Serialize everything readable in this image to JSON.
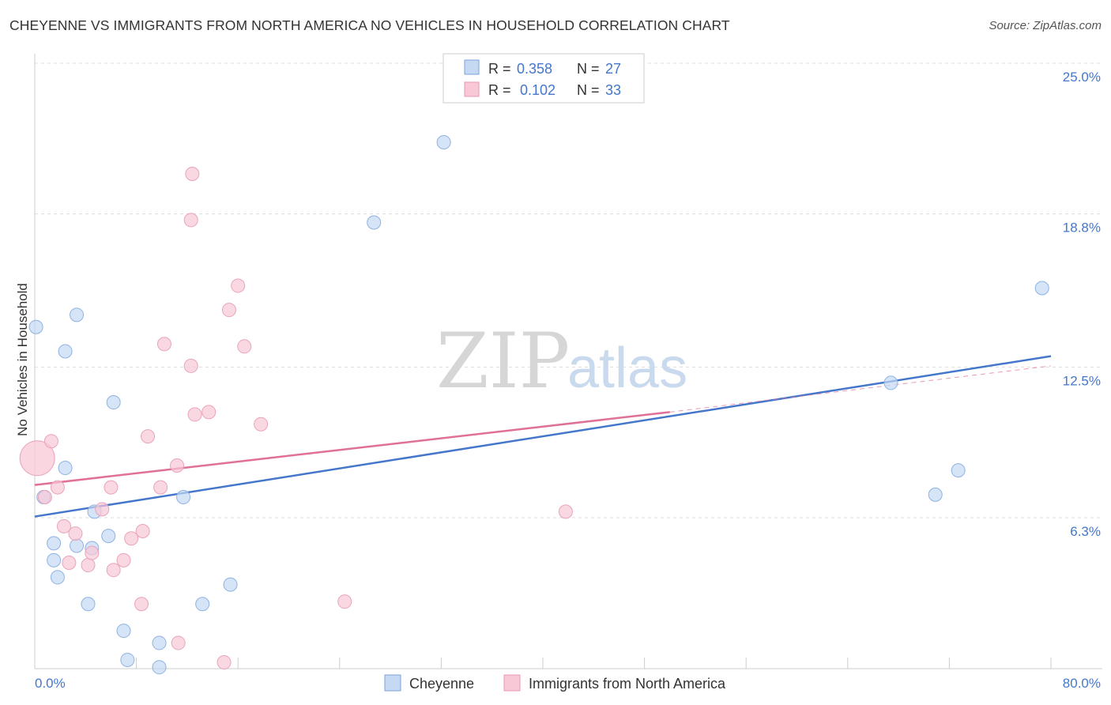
{
  "title": "CHEYENNE VS IMMIGRANTS FROM NORTH AMERICA NO VEHICLES IN HOUSEHOLD CORRELATION CHART",
  "source": "Source: ZipAtlas.com",
  "watermark": {
    "zip": "ZIP",
    "atlas": "atlas"
  },
  "colors": {
    "blue": "#4477cc",
    "pink": "#e07098",
    "blue_fill": "#c5d9f3",
    "pink_fill": "#f8c8d6",
    "grid": "#dddddd"
  },
  "chart_data": {
    "type": "scatter",
    "title": "CHEYENNE VS IMMIGRANTS FROM NORTH AMERICA NO VEHICLES IN HOUSEHOLD CORRELATION CHART",
    "xlabel": "",
    "ylabel": "No Vehicles in Household",
    "xlim": [
      0,
      80
    ],
    "ylim": [
      0,
      26
    ],
    "x_tick_labels": [
      {
        "value": 0,
        "label": "0.0%"
      },
      {
        "value": 80,
        "label": "80.0%"
      }
    ],
    "y_ticks": [
      {
        "value": 6.3,
        "label": "6.3%"
      },
      {
        "value": 12.5,
        "label": "12.5%"
      },
      {
        "value": 18.8,
        "label": "18.8%"
      },
      {
        "value": 25.0,
        "label": "25.0%"
      }
    ],
    "legend": {
      "rows": [
        {
          "r_label": "R =",
          "r_value": "0.358",
          "n_label": "N =",
          "n_value": "27"
        },
        {
          "r_label": "R =",
          "r_value": "0.102",
          "n_label": "N =",
          "n_value": "33"
        }
      ]
    },
    "series": [
      {
        "name": "Cheyenne",
        "color": "#4477cc",
        "trend": {
          "x0": 0,
          "y0": 6.9,
          "x1": 80,
          "y1": 13.5,
          "style": "solid"
        },
        "points": [
          [
            0.1,
            14.7
          ],
          [
            0.7,
            7.7
          ],
          [
            2.4,
            13.7
          ],
          [
            3.3,
            15.2
          ],
          [
            6.2,
            11.6
          ],
          [
            2.4,
            8.9
          ],
          [
            1.5,
            5.1
          ],
          [
            1.8,
            4.4
          ],
          [
            1.5,
            5.8
          ],
          [
            3.3,
            5.7
          ],
          [
            4.7,
            7.1
          ],
          [
            4.5,
            5.6
          ],
          [
            5.8,
            6.1
          ],
          [
            11.7,
            7.7
          ],
          [
            4.2,
            3.3
          ],
          [
            7.0,
            2.2
          ],
          [
            7.3,
            1.0
          ],
          [
            9.8,
            1.7
          ],
          [
            9.8,
            0.7
          ],
          [
            13.2,
            3.3
          ],
          [
            15.4,
            4.1
          ],
          [
            32.2,
            22.3
          ],
          [
            26.7,
            19.0
          ],
          [
            67.4,
            12.4
          ],
          [
            79.3,
            16.3
          ],
          [
            72.7,
            8.8
          ],
          [
            70.9,
            7.8
          ]
        ]
      },
      {
        "name": "Immigrants from North America",
        "color": "#e07098",
        "trend": {
          "x0": 0,
          "y0": 8.2,
          "x1": 50,
          "y1": 11.2,
          "style": "solid",
          "ext_x1": 80,
          "ext_y1": 13.1,
          "ext_style": "dashed"
        },
        "points": [
          [
            0.2,
            9.3
          ],
          [
            0.8,
            7.7
          ],
          [
            1.3,
            10.0
          ],
          [
            1.8,
            8.1
          ],
          [
            2.3,
            6.5
          ],
          [
            3.2,
            6.2
          ],
          [
            2.7,
            5.0
          ],
          [
            4.2,
            4.9
          ],
          [
            4.5,
            5.4
          ],
          [
            5.3,
            7.2
          ],
          [
            6.0,
            8.1
          ],
          [
            6.2,
            4.7
          ],
          [
            7.0,
            5.1
          ],
          [
            7.6,
            6.0
          ],
          [
            8.4,
            3.3
          ],
          [
            8.5,
            6.3
          ],
          [
            8.9,
            10.2
          ],
          [
            9.9,
            8.1
          ],
          [
            10.2,
            14.0
          ],
          [
            11.2,
            9.0
          ],
          [
            12.3,
            13.1
          ],
          [
            12.6,
            11.1
          ],
          [
            13.7,
            11.2
          ],
          [
            12.3,
            19.1
          ],
          [
            12.4,
            21.0
          ],
          [
            16.0,
            16.4
          ],
          [
            16.5,
            13.9
          ],
          [
            17.8,
            10.7
          ],
          [
            15.3,
            15.4
          ],
          [
            24.4,
            3.4
          ],
          [
            11.3,
            1.7
          ],
          [
            14.9,
            0.9
          ],
          [
            41.8,
            7.1
          ]
        ],
        "big_point_index": 0
      }
    ]
  },
  "bottom_legend": {
    "items": [
      "Cheyenne",
      "Immigrants from North America"
    ]
  }
}
